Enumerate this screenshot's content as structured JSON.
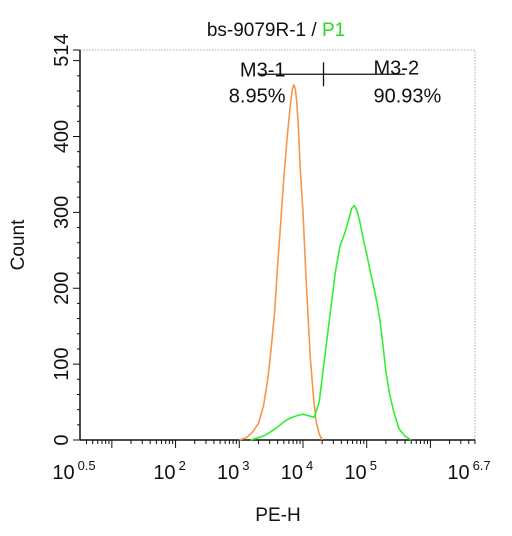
{
  "chart_data": {
    "type": "line",
    "title": {
      "sample": "bs-9079R-1",
      "separator": " / ",
      "gate": "P1",
      "gate_color": "#22dd22"
    },
    "xlabel": "PE-H",
    "ylabel": "Count",
    "x_scale": "log",
    "xlim": [
      3.1623,
      5011872
    ],
    "ylim": [
      0,
      514
    ],
    "x_ticks": [
      {
        "value": 3.1623,
        "base": "10",
        "exp": "0.5"
      },
      {
        "value": 100,
        "base": "10",
        "exp": "2"
      },
      {
        "value": 1000,
        "base": "10",
        "exp": "3"
      },
      {
        "value": 10000,
        "base": "10",
        "exp": "4"
      },
      {
        "value": 100000,
        "base": "10",
        "exp": "5"
      },
      {
        "value": 5011872,
        "base": "10",
        "exp": "6.7"
      }
    ],
    "y_ticks": [
      0,
      100,
      200,
      300,
      400,
      514
    ],
    "series": [
      {
        "color": "#f5964a",
        "points": [
          [
            1000,
            0
          ],
          [
            1300,
            3
          ],
          [
            1600,
            10
          ],
          [
            2000,
            22
          ],
          [
            2400,
            45
          ],
          [
            2800,
            80
          ],
          [
            3200,
            125
          ],
          [
            3600,
            170
          ],
          [
            4000,
            230
          ],
          [
            4500,
            290
          ],
          [
            5000,
            345
          ],
          [
            5600,
            395
          ],
          [
            6300,
            440
          ],
          [
            6800,
            462
          ],
          [
            7200,
            468
          ],
          [
            7600,
            462
          ],
          [
            8000,
            445
          ],
          [
            8500,
            410
          ],
          [
            9000,
            360
          ],
          [
            10000,
            300
          ],
          [
            11000,
            225
          ],
          [
            12000,
            165
          ],
          [
            13000,
            110
          ],
          [
            14500,
            60
          ],
          [
            16000,
            25
          ],
          [
            18000,
            8
          ],
          [
            20000,
            0
          ]
        ]
      },
      {
        "color": "#33ee33",
        "points": [
          [
            1500,
            0
          ],
          [
            2000,
            3
          ],
          [
            2500,
            6
          ],
          [
            3000,
            10
          ],
          [
            4000,
            17
          ],
          [
            5000,
            24
          ],
          [
            6000,
            28
          ],
          [
            8000,
            32
          ],
          [
            10000,
            34
          ],
          [
            12000,
            32
          ],
          [
            15000,
            30
          ],
          [
            18000,
            50
          ],
          [
            22000,
            110
          ],
          [
            27000,
            170
          ],
          [
            32000,
            220
          ],
          [
            38000,
            255
          ],
          [
            45000,
            272
          ],
          [
            52000,
            290
          ],
          [
            58000,
            305
          ],
          [
            64000,
            309
          ],
          [
            70000,
            303
          ],
          [
            78000,
            288
          ],
          [
            88000,
            265
          ],
          [
            100000,
            245
          ],
          [
            115000,
            220
          ],
          [
            130000,
            200
          ],
          [
            145000,
            180
          ],
          [
            160000,
            160
          ],
          [
            180000,
            125
          ],
          [
            200000,
            90
          ],
          [
            230000,
            60
          ],
          [
            270000,
            35
          ],
          [
            320000,
            15
          ],
          [
            400000,
            5
          ],
          [
            500000,
            0
          ]
        ]
      }
    ],
    "gates": {
      "y": 482,
      "split_x": 21000,
      "left_start_x": 2100,
      "right_end_x": 400000,
      "left": {
        "name": "M3-1",
        "percent": "8.95%"
      },
      "right": {
        "name": "M3-2",
        "percent": "90.93%"
      }
    }
  }
}
